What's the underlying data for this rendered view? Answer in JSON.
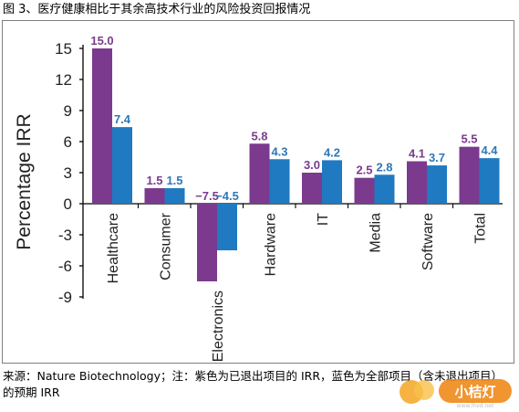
{
  "figure": {
    "caption_top": "图 3、医疗健康相比于其余高技术行业的风险投资回报情况",
    "caption_bottom": "来源：Nature Biotechnology；注：紫色为已退出项目的 IRR，蓝色为全部项目（含未退出项目）的预期 IRR",
    "watermark_text": "小桔灯",
    "watermark_url": "www.lhvd.net"
  },
  "colors": {
    "exited": "#7b3a8e",
    "all": "#1f7ac1",
    "label_exited": "#7b3a8e",
    "label_all": "#2e78b8",
    "axis": "#000000"
  },
  "chart_data": {
    "type": "bar",
    "title": "",
    "xlabel": "",
    "ylabel": "Percentage IRR",
    "ylim": [
      -9,
      15
    ],
    "yticks": [
      "15",
      "12",
      "9",
      "6",
      "3",
      "0",
      "-3",
      "-6",
      "-9"
    ],
    "ytick_values": [
      15,
      12,
      9,
      6,
      3,
      0,
      -3,
      -6,
      -9
    ],
    "categories": [
      "Healthcare",
      "Consumer",
      "Electronics",
      "Hardware",
      "IT",
      "Media",
      "Software",
      "Total"
    ],
    "series": [
      {
        "key": "exited",
        "values": [
          15.0,
          1.5,
          -7.5,
          5.8,
          3.0,
          2.5,
          4.1,
          5.5
        ],
        "labels": [
          "15.0",
          "1.5",
          "−7.5",
          "5.8",
          "3.0",
          "2.5",
          "4.1",
          "5.5"
        ]
      },
      {
        "key": "all",
        "values": [
          7.4,
          1.5,
          -4.5,
          4.3,
          4.2,
          2.8,
          3.7,
          4.4
        ],
        "labels": [
          "7.4",
          "1.5",
          "−4.5",
          "4.3",
          "4.2",
          "2.8",
          "3.7",
          "4.4"
        ]
      }
    ],
    "grid": false,
    "legend": "none"
  }
}
